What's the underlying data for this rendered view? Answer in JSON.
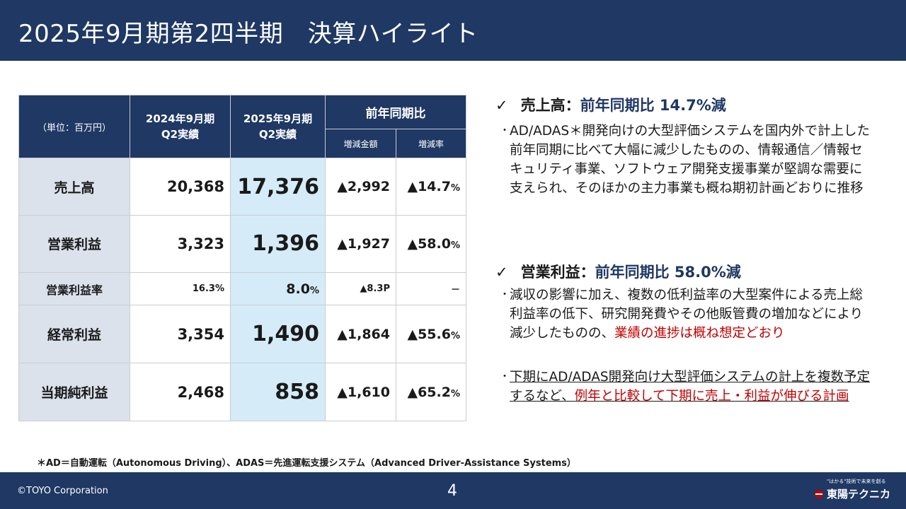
{
  "title": "2025年9月期第2四半期　決算ハイライト",
  "table": {
    "unit_label": "（単位：百万円）",
    "col_prev": [
      "2024年9月期",
      "Q2実績"
    ],
    "col_cur": [
      "2025年9月期",
      "Q2実績"
    ],
    "col_yoy": "前年同期比",
    "col_diff": "増減金額",
    "col_rate": "増減率",
    "rows": [
      {
        "label": "売上高",
        "prev": "20,368",
        "cur": "17,376",
        "diff": "▲2,992",
        "rate": "▲14.7",
        "rate_unit": "%"
      },
      {
        "label": "営業利益",
        "prev": "3,323",
        "cur": "1,396",
        "diff": "▲1,927",
        "rate": "▲58.0",
        "rate_unit": "%"
      },
      {
        "label": "営業利益率",
        "prev": "16.3",
        "prev_unit": "%",
        "cur": "8.0",
        "cur_unit": "%",
        "diff": "▲8.3",
        "diff_unit": "P",
        "rate": "－",
        "rate_unit": ""
      },
      {
        "label": "経常利益",
        "prev": "3,354",
        "cur": "1,490",
        "diff": "▲1,864",
        "rate": "▲55.6",
        "rate_unit": "%"
      },
      {
        "label": "当期純利益",
        "prev": "2,468",
        "cur": "858",
        "diff": "▲1,610",
        "rate": "▲65.2",
        "rate_unit": "%"
      }
    ]
  },
  "sales_section": {
    "check": "✓",
    "heading": "売上高：",
    "heading_accent": "前年同期比 14.7%減",
    "bullet": "・",
    "text": "AD/ADAS＊開発向けの大型評価システムを国内外で計上した前年同期に比べて大幅に減少したものの、情報通信／情報セキュリティ事業、ソフトウェア開発支援事業が堅調な需要に支えられ、そのほかの主力事業も概ね期初計画どおりに推移"
  },
  "op_section": {
    "check": "✓",
    "heading": "営業利益：",
    "heading_accent": "前年同期比 58.0%減",
    "bullet": "・",
    "text1_plain": "減収の影響に加え、複数の低利益率の大型案件による売上総利益率の低下、研究開発費やその他販管費の増加などにより減少したものの、",
    "text1_red": "業績の進捗は概ね想定どおり",
    "text2_plain": "下期にAD/ADAS開発向け大型評価システムの計上を複数予定するなど、",
    "text2_red": "例年と比較して下期に売上・利益が伸びる計画"
  },
  "footnote": "＊AD＝自動運転（Autonomous Driving）、ADAS＝先進運転支援システム（Advanced Driver-Assistance Systems）",
  "footer": {
    "copyright": "©TOYO Corporation",
    "page": "4",
    "logo_tagline": "\"はかる\"技術で未来を創る",
    "logo_text": "東陽テクニカ"
  },
  "colors": {
    "brand_navy": "#1f3864",
    "label_bg": "#dbe2ec",
    "current_col_bg": "#d5ecf8",
    "emphasis_red": "#c00000"
  }
}
